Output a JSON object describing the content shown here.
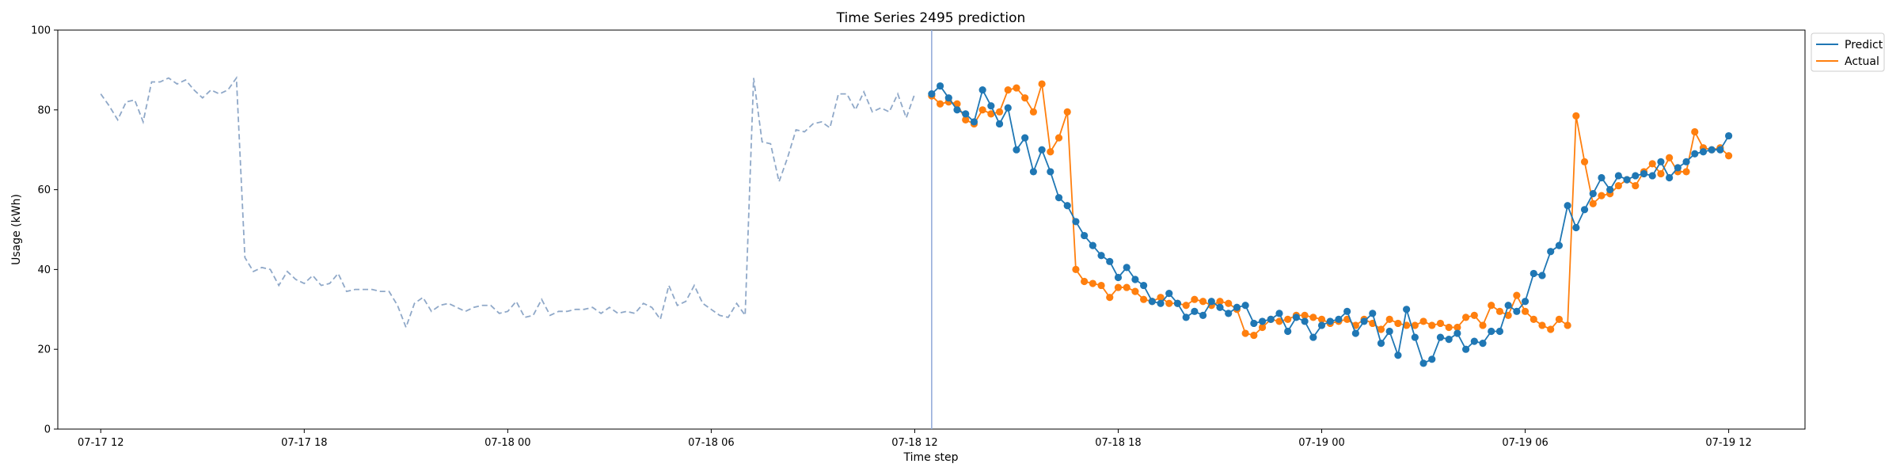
{
  "chart_data": {
    "type": "line",
    "title": "Time Series 2495 prediction",
    "xlabel": "Time step",
    "ylabel": "Usage (kWh)",
    "ylim": [
      0,
      100
    ],
    "yticks": [
      0,
      20,
      40,
      60,
      80,
      100
    ],
    "xlim": [
      "07-17 10:44",
      "07-19 14:15"
    ],
    "xticks": [
      "07-17 12",
      "07-17 18",
      "07-18 00",
      "07-18 06",
      "07-18 12",
      "07-18 18",
      "07-19 00",
      "07-19 06",
      "07-19 12"
    ],
    "grid": false,
    "legend_position": "top-right (outside plot)",
    "forecast_start": "07-18 12:30",
    "colors": {
      "history": "#8fa8c8",
      "predict": "#1f77b4",
      "actual": "#ff7f0e",
      "split_line": "#8fa8d8"
    },
    "history": {
      "start": "07-17 12:00",
      "interval_minutes": 15,
      "style": "dashed",
      "values": [
        84,
        81,
        77.5,
        82,
        82.5,
        77,
        87,
        87,
        88,
        86.5,
        87.5,
        85,
        83,
        85,
        84,
        85,
        88,
        43,
        39.5,
        40.5,
        40,
        36,
        39.5,
        37.5,
        36.5,
        38.5,
        36,
        36.5,
        39,
        34.5,
        35,
        35,
        35,
        34.5,
        34.5,
        31,
        25.5,
        31.5,
        33,
        29.5,
        31,
        31.5,
        30.5,
        29.5,
        30.5,
        31,
        31,
        29,
        29.5,
        32,
        28,
        28.5,
        32.5,
        28.5,
        29.5,
        29.5,
        30,
        30,
        30.5,
        29,
        30.5,
        29,
        29.5,
        29,
        31.5,
        30.5,
        27.5,
        36,
        31,
        32,
        36,
        31.5,
        30,
        28.5,
        28,
        31.5,
        28.5,
        88,
        72,
        71.5,
        62,
        68,
        75,
        74.5,
        76.5,
        77,
        75.5,
        84,
        84,
        80,
        84.5,
        79.5,
        80.5,
        79.5,
        84,
        78,
        84
      ]
    },
    "series": [
      {
        "name": "Predict",
        "marker": "circle",
        "start": "07-18 12:30",
        "interval_minutes": 15,
        "values": [
          84,
          86,
          83,
          80,
          79,
          77,
          85,
          81,
          76.5,
          80.5,
          70,
          73,
          64.5,
          70,
          64.5,
          58,
          56,
          52,
          48.5,
          46,
          43.5,
          42,
          38,
          40.5,
          37.5,
          36,
          32,
          31.5,
          34,
          31.5,
          28,
          29.5,
          28.5,
          32,
          30.5,
          29,
          30.5,
          31,
          26.5,
          27,
          27.5,
          29,
          24.5,
          28,
          27,
          23,
          26,
          27,
          27.5,
          29.5,
          24,
          27,
          29,
          21.5,
          24.5,
          18.5,
          30,
          23,
          16.5,
          17.5,
          23,
          22.5,
          24,
          20,
          22,
          21.5,
          24.5,
          24.5,
          31,
          29.5,
          32,
          39,
          38.5,
          44.5,
          46,
          56,
          50.5,
          55,
          59,
          63,
          60,
          63.5,
          62.5,
          63.5,
          64,
          63.5,
          67,
          63,
          65.5,
          67,
          69,
          69.5,
          70,
          70,
          73.5
        ]
      },
      {
        "name": "Actual",
        "marker": "circle",
        "start": "07-18 12:30",
        "interval_minutes": 15,
        "values": [
          83.5,
          81.5,
          82,
          81.5,
          77.5,
          76.5,
          80,
          79,
          79.5,
          85,
          85.5,
          83,
          79.5,
          86.5,
          69.5,
          73,
          79.5,
          40,
          37,
          36.5,
          36,
          33,
          35.5,
          35.5,
          34.5,
          32.5,
          32,
          33,
          31.5,
          31.5,
          31,
          32.5,
          32,
          31,
          32,
          31.5,
          30,
          24,
          23.5,
          25.5,
          27.5,
          27,
          27.5,
          28.5,
          28.5,
          28,
          27.5,
          26.5,
          27,
          27.5,
          26,
          27.5,
          26.5,
          25,
          27.5,
          26.5,
          26,
          26,
          27,
          26,
          26.5,
          25.5,
          25.5,
          28,
          28.5,
          26,
          31,
          29.5,
          28.5,
          33.5,
          29.5,
          27.5,
          26,
          25,
          27.5,
          26,
          78.5,
          67,
          56.5,
          58.5,
          59,
          61,
          62.5,
          61,
          64.5,
          66.5,
          64,
          68,
          64.5,
          64.5,
          74.5,
          70.5,
          70,
          70.5,
          68.5
        ]
      }
    ]
  }
}
